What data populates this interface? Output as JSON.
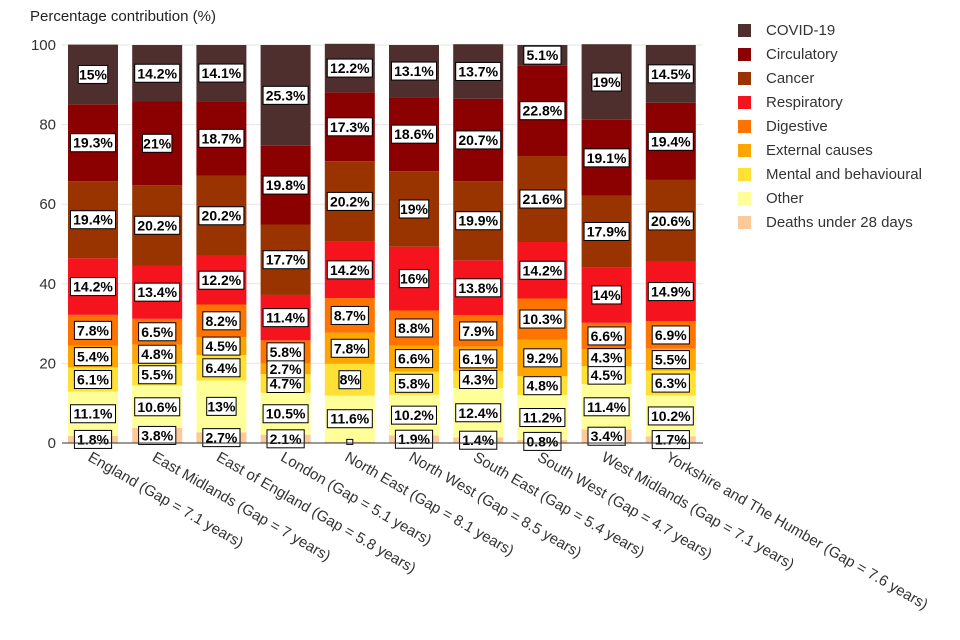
{
  "chart_data": {
    "type": "bar",
    "stacked": true,
    "title": "",
    "ylabel": "Percentage contribution (%)",
    "xlabel": "",
    "ylim": [
      0,
      100
    ],
    "yticks": [
      0,
      20,
      40,
      60,
      80,
      100
    ],
    "grid": true,
    "legend_position": "top-right",
    "categories": [
      "England (Gap = 7.1 years)",
      "East Midlands (Gap = 7 years)",
      "East of England (Gap = 5.8 years)",
      "London (Gap = 5.1 years)",
      "North East (Gap = 8.1 years)",
      "North West (Gap = 8.5 years)",
      "South East (Gap = 5.4 years)",
      "South West (Gap = 4.7 years)",
      "West Midlands (Gap = 7.1 years)",
      "Yorkshire and The Humber (Gap = 7.6 years)"
    ],
    "series": [
      {
        "name": "Deaths under 28 days",
        "color": "#fcc99b",
        "values": [
          1.8,
          3.8,
          2.7,
          2.1,
          0.3,
          1.9,
          1.4,
          0.8,
          3.4,
          1.7
        ],
        "labels": [
          "1.8%",
          "3.8%",
          "2.7%",
          "2.1%",
          "",
          "1.9%",
          "1.4%",
          "0.8%",
          "3.4%",
          "1.7%"
        ]
      },
      {
        "name": "Other",
        "color": "#ffff99",
        "values": [
          11.1,
          10.6,
          13,
          10.5,
          11.6,
          10.2,
          12.4,
          11.2,
          11.4,
          10.2
        ],
        "labels": [
          "11.1%",
          "10.6%",
          "13%",
          "10.5%",
          "11.6%",
          "10.2%",
          "12.4%",
          "11.2%",
          "11.4%",
          "10.2%"
        ]
      },
      {
        "name": "Mental and behavioural",
        "color": "#ffe135",
        "values": [
          6.1,
          5.5,
          6.4,
          4.7,
          8,
          5.8,
          4.3,
          4.8,
          4.5,
          6.3
        ],
        "labels": [
          "6.1%",
          "5.5%",
          "6.4%",
          "4.7%",
          "8%",
          "5.8%",
          "4.3%",
          "4.8%",
          "4.5%",
          "6.3%"
        ]
      },
      {
        "name": "External causes",
        "color": "#ffa500",
        "values": [
          5.4,
          4.8,
          4.5,
          2.7,
          7.8,
          6.6,
          6.1,
          9.2,
          4.3,
          5.5
        ],
        "labels": [
          "5.4%",
          "4.8%",
          "4.5%",
          "2.7%",
          "7.8%",
          "6.6%",
          "6.1%",
          "9.2%",
          "4.3%",
          "5.5%"
        ]
      },
      {
        "name": "Digestive",
        "color": "#ff7400",
        "values": [
          7.8,
          6.5,
          8.2,
          5.8,
          8.7,
          8.8,
          7.9,
          10.3,
          6.6,
          6.9
        ],
        "labels": [
          "7.8%",
          "6.5%",
          "8.2%",
          "5.8%",
          "8.7%",
          "8.8%",
          "7.9%",
          "10.3%",
          "6.6%",
          "6.9%"
        ]
      },
      {
        "name": "Respiratory",
        "color": "#f5131d",
        "values": [
          14.2,
          13.4,
          12.2,
          11.4,
          14.2,
          16,
          13.8,
          14.2,
          14,
          14.9
        ],
        "labels": [
          "14.2%",
          "13.4%",
          "12.2%",
          "11.4%",
          "14.2%",
          "16%",
          "13.8%",
          "14.2%",
          "14%",
          "14.9%"
        ]
      },
      {
        "name": "Cancer",
        "color": "#993300",
        "values": [
          19.4,
          20.2,
          20.2,
          17.7,
          20.2,
          19,
          19.9,
          21.6,
          17.9,
          20.6
        ],
        "labels": [
          "19.4%",
          "20.2%",
          "20.2%",
          "17.7%",
          "20.2%",
          "19%",
          "19.9%",
          "21.6%",
          "17.9%",
          "20.6%"
        ]
      },
      {
        "name": "Circulatory",
        "color": "#8b0000",
        "values": [
          19.3,
          21,
          18.7,
          19.8,
          17.3,
          18.6,
          20.7,
          22.8,
          19.1,
          19.4
        ],
        "labels": [
          "19.3%",
          "21%",
          "18.7%",
          "19.8%",
          "17.3%",
          "18.6%",
          "20.7%",
          "22.8%",
          "19.1%",
          "19.4%"
        ]
      },
      {
        "name": "COVID-19",
        "color": "#4f2e2e",
        "values": [
          15,
          14.2,
          14.1,
          25.3,
          12.2,
          13.1,
          13.7,
          5.1,
          19,
          14.5
        ],
        "labels": [
          "15%",
          "14.2%",
          "14.1%",
          "25.3%",
          "12.2%",
          "13.1%",
          "13.7%",
          "5.1%",
          "19%",
          "14.5%"
        ]
      }
    ],
    "legend_order": [
      "COVID-19",
      "Circulatory",
      "Cancer",
      "Respiratory",
      "Digestive",
      "External causes",
      "Mental and behavioural",
      "Other",
      "Deaths under 28 days"
    ]
  }
}
